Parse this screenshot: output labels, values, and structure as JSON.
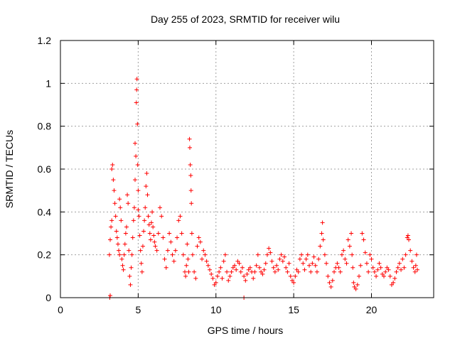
{
  "chart_data": {
    "type": "scatter",
    "title": "Day 255 of 2023, SRMTID for receiver wilu",
    "xlabel": "GPS time / hours",
    "ylabel": "SRMTID / TECUs",
    "xlim": [
      0,
      24
    ],
    "ylim": [
      0,
      1.2
    ],
    "xticks": [
      0,
      5,
      10,
      15,
      20
    ],
    "xtick_labels": [
      "0",
      "5",
      "10",
      "15",
      "20"
    ],
    "yticks": [
      0,
      0.2,
      0.4,
      0.6,
      0.8,
      1.0,
      1.2
    ],
    "ytick_labels": [
      "0",
      "0.2",
      "0.4",
      "0.6",
      "0.8",
      "1",
      "1.2"
    ],
    "grid": true,
    "marker": "+",
    "color": "#ff0000",
    "series": [
      {
        "name": "SRMTID",
        "points": [
          [
            3.17,
            0.0
          ],
          [
            3.2,
            0.01
          ],
          [
            11.8,
            0.0
          ],
          [
            3.15,
            0.2
          ],
          [
            3.2,
            0.27
          ],
          [
            3.25,
            0.33
          ],
          [
            3.3,
            0.36
          ],
          [
            3.3,
            0.6
          ],
          [
            3.35,
            0.62
          ],
          [
            3.4,
            0.55
          ],
          [
            3.45,
            0.5
          ],
          [
            3.5,
            0.44
          ],
          [
            3.55,
            0.38
          ],
          [
            3.6,
            0.31
          ],
          [
            3.65,
            0.28
          ],
          [
            3.7,
            0.25
          ],
          [
            3.75,
            0.22
          ],
          [
            3.8,
            0.2
          ],
          [
            3.8,
            0.46
          ],
          [
            3.85,
            0.42
          ],
          [
            3.9,
            0.36
          ],
          [
            3.95,
            0.18
          ],
          [
            4.0,
            0.15
          ],
          [
            4.05,
            0.13
          ],
          [
            4.1,
            0.2
          ],
          [
            4.15,
            0.25
          ],
          [
            4.2,
            0.3
          ],
          [
            4.25,
            0.33
          ],
          [
            4.3,
            0.48
          ],
          [
            4.35,
            0.44
          ],
          [
            4.4,
            0.22
          ],
          [
            4.45,
            0.1
          ],
          [
            4.5,
            0.06
          ],
          [
            4.55,
            0.14
          ],
          [
            4.6,
            0.2
          ],
          [
            4.65,
            0.28
          ],
          [
            4.7,
            0.36
          ],
          [
            4.75,
            0.42
          ],
          [
            4.8,
            0.55
          ],
          [
            4.8,
            0.72
          ],
          [
            4.85,
            0.66
          ],
          [
            4.88,
            0.91
          ],
          [
            4.9,
            0.97
          ],
          [
            4.92,
            1.02
          ],
          [
            4.95,
            0.81
          ],
          [
            4.97,
            0.62
          ],
          [
            5.0,
            0.5
          ],
          [
            5.0,
            0.41
          ],
          [
            5.05,
            0.38
          ],
          [
            5.1,
            0.29
          ],
          [
            5.15,
            0.22
          ],
          [
            5.2,
            0.16
          ],
          [
            5.25,
            0.12
          ],
          [
            5.3,
            0.24
          ],
          [
            5.35,
            0.31
          ],
          [
            5.4,
            0.36
          ],
          [
            5.45,
            0.42
          ],
          [
            5.5,
            0.52
          ],
          [
            5.55,
            0.58
          ],
          [
            5.6,
            0.48
          ],
          [
            5.65,
            0.38
          ],
          [
            5.7,
            0.34
          ],
          [
            5.75,
            0.3
          ],
          [
            5.8,
            0.27
          ],
          [
            5.85,
            0.35
          ],
          [
            5.9,
            0.4
          ],
          [
            5.95,
            0.33
          ],
          [
            6.0,
            0.29
          ],
          [
            6.05,
            0.26
          ],
          [
            6.1,
            0.24
          ],
          [
            6.2,
            0.22
          ],
          [
            6.3,
            0.3
          ],
          [
            6.4,
            0.42
          ],
          [
            6.5,
            0.38
          ],
          [
            6.6,
            0.28
          ],
          [
            6.7,
            0.18
          ],
          [
            6.8,
            0.14
          ],
          [
            6.9,
            0.22
          ],
          [
            7.0,
            0.3
          ],
          [
            7.1,
            0.26
          ],
          [
            7.2,
            0.2
          ],
          [
            7.3,
            0.17
          ],
          [
            7.4,
            0.22
          ],
          [
            7.5,
            0.28
          ],
          [
            7.6,
            0.36
          ],
          [
            7.7,
            0.38
          ],
          [
            7.8,
            0.3
          ],
          [
            7.9,
            0.2
          ],
          [
            8.0,
            0.12
          ],
          [
            8.05,
            0.1
          ],
          [
            8.1,
            0.15
          ],
          [
            8.15,
            0.25
          ],
          [
            8.2,
            0.18
          ],
          [
            8.25,
            0.12
          ],
          [
            8.3,
            0.74
          ],
          [
            8.32,
            0.7
          ],
          [
            8.35,
            0.62
          ],
          [
            8.38,
            0.57
          ],
          [
            8.4,
            0.5
          ],
          [
            8.42,
            0.44
          ],
          [
            8.45,
            0.3
          ],
          [
            8.5,
            0.2
          ],
          [
            8.6,
            0.12
          ],
          [
            8.7,
            0.09
          ],
          [
            8.8,
            0.24
          ],
          [
            8.9,
            0.28
          ],
          [
            9.0,
            0.26
          ],
          [
            9.1,
            0.18
          ],
          [
            9.2,
            0.22
          ],
          [
            9.3,
            0.2
          ],
          [
            9.4,
            0.17
          ],
          [
            9.5,
            0.15
          ],
          [
            9.6,
            0.13
          ],
          [
            9.7,
            0.11
          ],
          [
            9.8,
            0.09
          ],
          [
            9.9,
            0.06
          ],
          [
            10.0,
            0.07
          ],
          [
            10.1,
            0.1
          ],
          [
            10.2,
            0.12
          ],
          [
            10.3,
            0.14
          ],
          [
            10.4,
            0.09
          ],
          [
            10.5,
            0.17
          ],
          [
            10.6,
            0.2
          ],
          [
            10.7,
            0.12
          ],
          [
            10.8,
            0.08
          ],
          [
            10.9,
            0.1
          ],
          [
            11.0,
            0.12
          ],
          [
            11.1,
            0.14
          ],
          [
            11.2,
            0.15
          ],
          [
            11.3,
            0.13
          ],
          [
            11.4,
            0.17
          ],
          [
            11.5,
            0.16
          ],
          [
            11.6,
            0.12
          ],
          [
            11.7,
            0.14
          ],
          [
            11.8,
            0.1
          ],
          [
            11.9,
            0.08
          ],
          [
            12.0,
            0.11
          ],
          [
            12.1,
            0.13
          ],
          [
            12.2,
            0.14
          ],
          [
            12.3,
            0.12
          ],
          [
            12.4,
            0.09
          ],
          [
            12.5,
            0.12
          ],
          [
            12.6,
            0.15
          ],
          [
            12.7,
            0.2
          ],
          [
            12.8,
            0.14
          ],
          [
            12.9,
            0.12
          ],
          [
            13.0,
            0.11
          ],
          [
            13.1,
            0.13
          ],
          [
            13.2,
            0.16
          ],
          [
            13.3,
            0.2
          ],
          [
            13.4,
            0.23
          ],
          [
            13.5,
            0.21
          ],
          [
            13.6,
            0.17
          ],
          [
            13.7,
            0.14
          ],
          [
            13.8,
            0.12
          ],
          [
            13.9,
            0.15
          ],
          [
            14.0,
            0.13
          ],
          [
            14.1,
            0.18
          ],
          [
            14.2,
            0.2
          ],
          [
            14.3,
            0.17
          ],
          [
            14.4,
            0.19
          ],
          [
            14.5,
            0.14
          ],
          [
            14.6,
            0.12
          ],
          [
            14.7,
            0.16
          ],
          [
            14.8,
            0.1
          ],
          [
            14.9,
            0.08
          ],
          [
            15.0,
            0.07
          ],
          [
            15.1,
            0.1
          ],
          [
            15.2,
            0.13
          ],
          [
            15.3,
            0.12
          ],
          [
            15.4,
            0.18
          ],
          [
            15.5,
            0.2
          ],
          [
            15.6,
            0.16
          ],
          [
            15.7,
            0.13
          ],
          [
            15.8,
            0.18
          ],
          [
            15.9,
            0.2
          ],
          [
            16.0,
            0.15
          ],
          [
            16.1,
            0.12
          ],
          [
            16.2,
            0.16
          ],
          [
            16.3,
            0.19
          ],
          [
            16.4,
            0.15
          ],
          [
            16.5,
            0.12
          ],
          [
            16.6,
            0.18
          ],
          [
            16.7,
            0.24
          ],
          [
            16.8,
            0.3
          ],
          [
            16.85,
            0.35
          ],
          [
            16.9,
            0.27
          ],
          [
            17.0,
            0.2
          ],
          [
            17.1,
            0.16
          ],
          [
            17.2,
            0.1
          ],
          [
            17.3,
            0.07
          ],
          [
            17.4,
            0.05
          ],
          [
            17.5,
            0.08
          ],
          [
            17.6,
            0.12
          ],
          [
            17.7,
            0.14
          ],
          [
            17.8,
            0.16
          ],
          [
            17.9,
            0.14
          ],
          [
            18.0,
            0.12
          ],
          [
            18.1,
            0.2
          ],
          [
            18.2,
            0.22
          ],
          [
            18.3,
            0.18
          ],
          [
            18.4,
            0.16
          ],
          [
            18.5,
            0.27
          ],
          [
            18.6,
            0.24
          ],
          [
            18.7,
            0.3
          ],
          [
            18.75,
            0.2
          ],
          [
            18.8,
            0.14
          ],
          [
            18.85,
            0.07
          ],
          [
            18.9,
            0.05
          ],
          [
            19.0,
            0.04
          ],
          [
            19.1,
            0.06
          ],
          [
            19.2,
            0.1
          ],
          [
            19.3,
            0.15
          ],
          [
            19.4,
            0.3
          ],
          [
            19.5,
            0.27
          ],
          [
            19.6,
            0.21
          ],
          [
            19.7,
            0.16
          ],
          [
            19.8,
            0.12
          ],
          [
            19.9,
            0.2
          ],
          [
            20.0,
            0.18
          ],
          [
            20.1,
            0.14
          ],
          [
            20.2,
            0.12
          ],
          [
            20.3,
            0.1
          ],
          [
            20.4,
            0.13
          ],
          [
            20.5,
            0.16
          ],
          [
            20.6,
            0.14
          ],
          [
            20.7,
            0.11
          ],
          [
            20.8,
            0.1
          ],
          [
            20.9,
            0.12
          ],
          [
            21.0,
            0.14
          ],
          [
            21.1,
            0.13
          ],
          [
            21.2,
            0.1
          ],
          [
            21.3,
            0.06
          ],
          [
            21.4,
            0.07
          ],
          [
            21.5,
            0.09
          ],
          [
            21.6,
            0.12
          ],
          [
            21.7,
            0.14
          ],
          [
            21.8,
            0.16
          ],
          [
            21.9,
            0.13
          ],
          [
            22.0,
            0.18
          ],
          [
            22.1,
            0.14
          ],
          [
            22.2,
            0.2
          ],
          [
            22.3,
            0.28
          ],
          [
            22.35,
            0.29
          ],
          [
            22.4,
            0.27
          ],
          [
            22.5,
            0.22
          ],
          [
            22.6,
            0.17
          ],
          [
            22.7,
            0.14
          ],
          [
            22.8,
            0.12
          ],
          [
            22.85,
            0.15
          ],
          [
            22.9,
            0.2
          ],
          [
            22.95,
            0.13
          ]
        ]
      }
    ]
  }
}
